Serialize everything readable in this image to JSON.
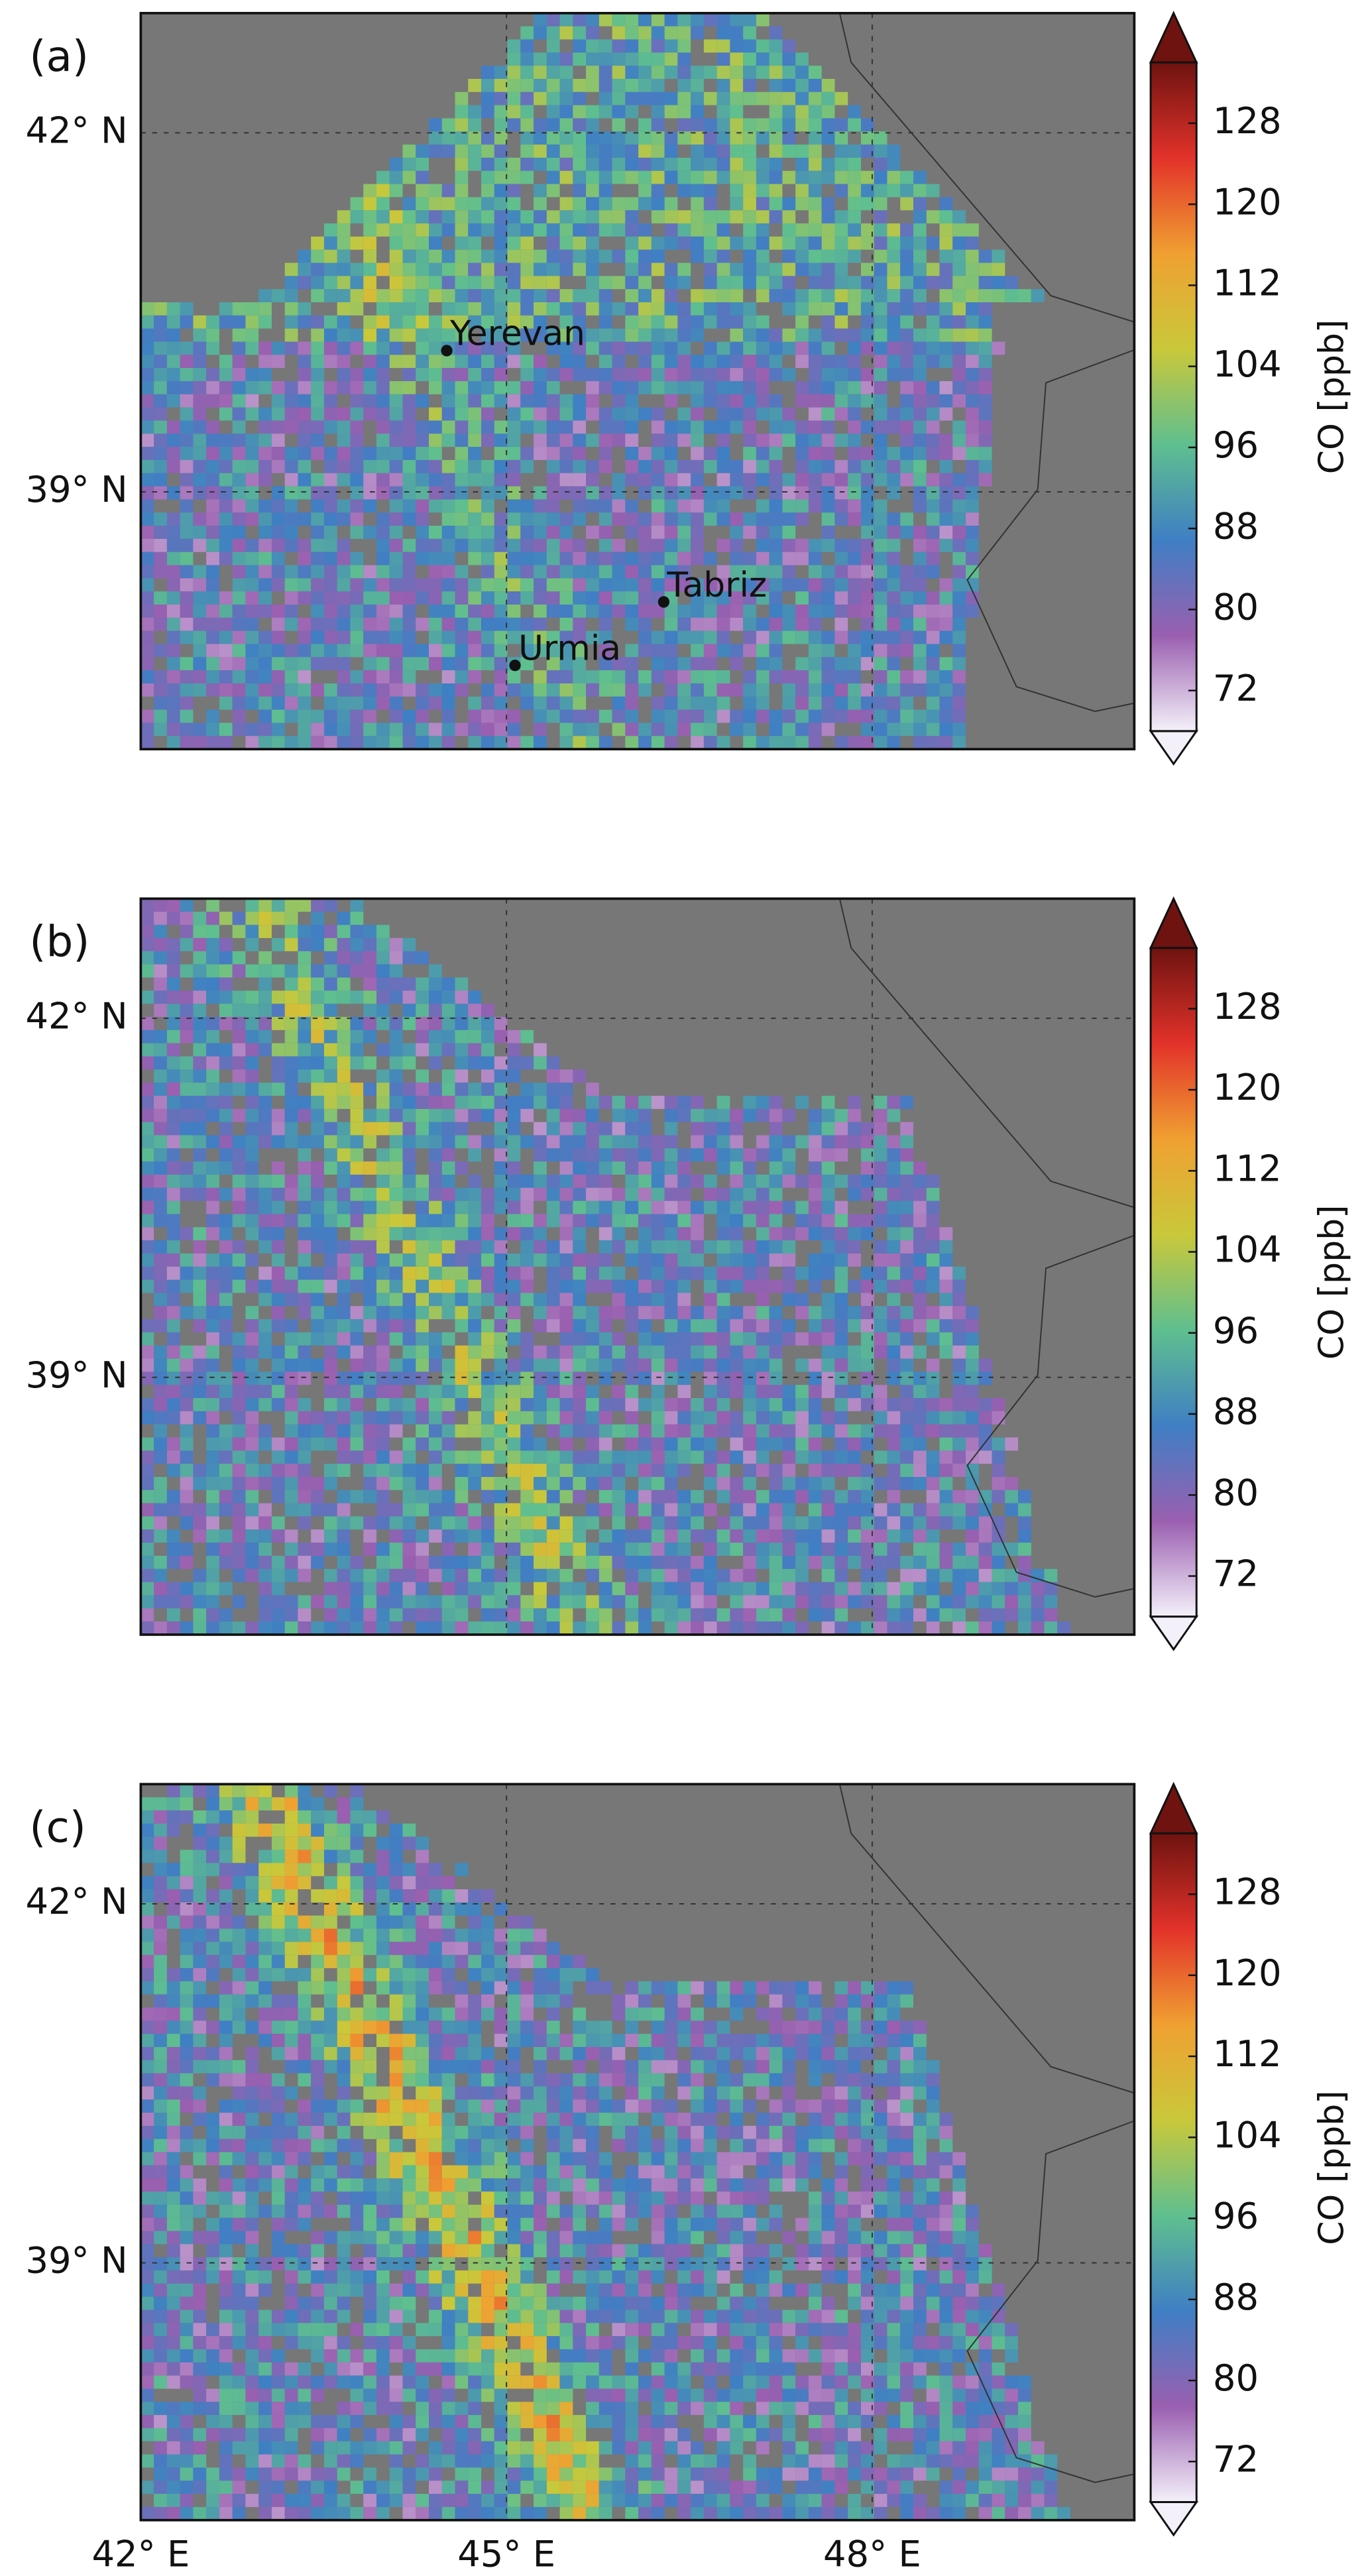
{
  "panels": [
    {
      "label": "(a)",
      "cities": [
        {
          "name": "Yerevan",
          "lon": 44.51,
          "lat": 40.18
        },
        {
          "name": "Tabriz",
          "lon": 46.29,
          "lat": 38.08
        },
        {
          "name": "Urmia",
          "lon": 45.07,
          "lat": 37.55
        }
      ]
    },
    {
      "label": "(b)"
    },
    {
      "label": "(c)"
    }
  ],
  "map": {
    "xlim": [
      42,
      50.15
    ],
    "ylim": [
      36.85,
      43.0
    ],
    "xticks": [
      {
        "value": 42,
        "label": "42° E"
      },
      {
        "value": 45,
        "label": "45° E"
      },
      {
        "value": 48,
        "label": "48° E"
      }
    ],
    "yticks": [
      {
        "value": 39,
        "label": "39° N"
      },
      {
        "value": 42,
        "label": "42° N"
      }
    ],
    "grid": true,
    "background": "#777777"
  },
  "colorbar": {
    "label": "CO [ppb]",
    "lim": [
      68,
      134
    ],
    "ticks": [
      72,
      80,
      88,
      96,
      104,
      112,
      120,
      128
    ],
    "colors": [
      "#f4f0fa",
      "#9a5fb0",
      "#3f7fc4",
      "#5fbf8f",
      "#c9c83a",
      "#f0a032",
      "#e2322a",
      "#6e1310"
    ]
  }
}
